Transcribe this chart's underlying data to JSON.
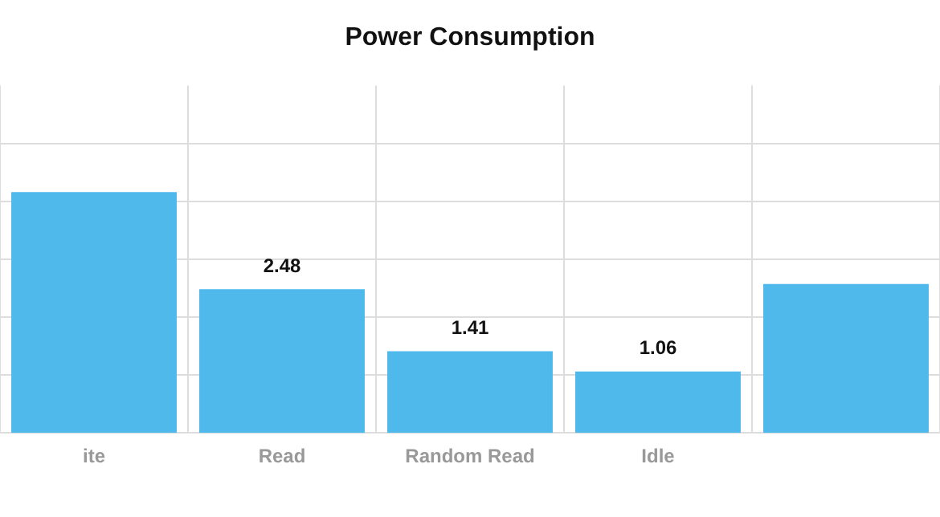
{
  "chart_data": {
    "type": "bar",
    "title": "Power Consumption",
    "categories": [
      "ite",
      "Read",
      "Random Read",
      "Idle",
      null
    ],
    "values": [
      4.16,
      2.48,
      1.41,
      1.06,
      2.57
    ],
    "value_labels": [
      null,
      "2.48",
      "1.41",
      "1.06",
      null
    ],
    "color": "#4fb9ec",
    "ylim": [
      0,
      6
    ],
    "yticks": [
      {
        "value": 1,
        "label": null
      },
      {
        "value": 2,
        "label": null
      },
      {
        "value": 3,
        "label": null
      },
      {
        "value": 4,
        "label": null
      },
      {
        "value": 5,
        "label": null
      }
    ],
    "tick_labels": "x",
    "grid": true,
    "legend": false
  }
}
